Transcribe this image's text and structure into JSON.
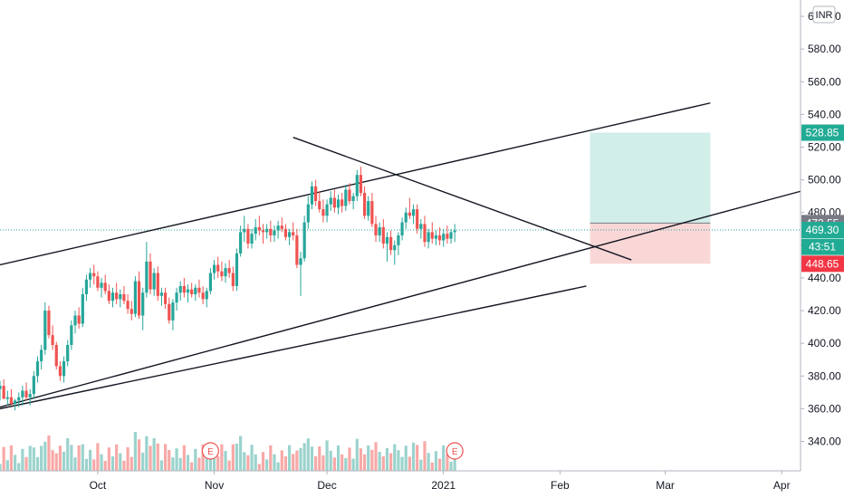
{
  "chart_data": {
    "type": "candlestick",
    "currency_badge": "INR",
    "y_ticks": [
      "340.00",
      "360.00",
      "380.00",
      "400.00",
      "420.00",
      "440.00",
      "460.00",
      "480.00",
      "500.00",
      "520.00",
      "540.00",
      "560.00",
      "580.00",
      "600.00"
    ],
    "x_ticks": [
      {
        "label": "Oct",
        "pos": "2020-10"
      },
      {
        "label": "Nov",
        "pos": "2020-11"
      },
      {
        "label": "Dec",
        "pos": "2020-12"
      },
      {
        "label": "2021",
        "pos": "2021-01"
      },
      {
        "label": "Feb",
        "pos": "2021-02"
      },
      {
        "label": "Mar",
        "pos": "2021-03"
      },
      {
        "label": "Apr",
        "pos": "2021-04"
      }
    ],
    "ylim": [
      322,
      610
    ],
    "x_range": [
      "2020-09-05",
      "2021-04-06"
    ],
    "candles": [
      [
        "2020-09-05",
        372,
        377,
        365,
        374
      ],
      [
        "2020-09-06",
        374,
        378,
        366,
        366
      ],
      [
        "2020-09-07",
        366,
        371,
        362,
        367
      ],
      [
        "2020-09-08",
        367,
        372,
        362,
        363
      ],
      [
        "2020-09-09",
        363,
        366,
        359,
        365
      ],
      [
        "2020-09-10",
        365,
        370,
        361,
        367
      ],
      [
        "2020-09-11",
        367,
        374,
        362,
        371
      ],
      [
        "2020-09-12",
        371,
        376,
        365,
        367
      ],
      [
        "2020-09-13",
        367,
        372,
        362,
        369
      ],
      [
        "2020-09-14",
        369,
        383,
        366,
        380
      ],
      [
        "2020-09-15",
        380,
        392,
        376,
        389
      ],
      [
        "2020-09-16",
        389,
        399,
        384,
        396
      ],
      [
        "2020-09-17",
        396,
        425,
        393,
        420
      ],
      [
        "2020-09-18",
        420,
        423,
        403,
        405
      ],
      [
        "2020-09-19",
        405,
        411,
        396,
        399
      ],
      [
        "2020-09-20",
        399,
        401,
        384,
        386
      ],
      [
        "2020-09-21",
        386,
        389,
        377,
        380
      ],
      [
        "2020-09-22",
        380,
        392,
        376,
        389
      ],
      [
        "2020-09-23",
        389,
        402,
        386,
        399
      ],
      [
        "2020-09-24",
        399,
        414,
        396,
        411
      ],
      [
        "2020-09-25",
        411,
        420,
        406,
        417
      ],
      [
        "2020-09-26",
        417,
        422,
        409,
        412
      ],
      [
        "2020-09-27",
        412,
        434,
        410,
        430
      ],
      [
        "2020-09-28",
        430,
        442,
        426,
        439
      ],
      [
        "2020-09-29",
        439,
        446,
        434,
        443
      ],
      [
        "2020-09-30",
        443,
        448,
        436,
        441
      ],
      [
        "2020-10-01",
        441,
        444,
        432,
        434
      ],
      [
        "2020-10-02",
        434,
        440,
        428,
        437
      ],
      [
        "2020-10-03",
        437,
        442,
        430,
        432
      ],
      [
        "2020-10-04",
        432,
        436,
        424,
        426
      ],
      [
        "2020-10-05",
        426,
        434,
        422,
        431
      ],
      [
        "2020-10-06",
        431,
        437,
        424,
        427
      ],
      [
        "2020-10-07",
        427,
        433,
        422,
        430
      ],
      [
        "2020-10-08",
        430,
        435,
        424,
        426
      ],
      [
        "2020-10-09",
        426,
        430,
        418,
        421
      ],
      [
        "2020-10-10",
        421,
        426,
        414,
        418
      ],
      [
        "2020-10-11",
        418,
        441,
        416,
        438
      ],
      [
        "2020-10-12",
        438,
        444,
        415,
        417
      ],
      [
        "2020-10-13",
        417,
        434,
        408,
        431
      ],
      [
        "2020-10-14",
        431,
        462,
        428,
        450
      ],
      [
        "2020-10-15",
        450,
        455,
        430,
        433
      ],
      [
        "2020-10-16",
        433,
        446,
        429,
        443
      ],
      [
        "2020-10-17",
        443,
        447,
        426,
        429
      ],
      [
        "2020-10-18",
        429,
        434,
        423,
        431
      ],
      [
        "2020-10-19",
        431,
        434,
        421,
        424
      ],
      [
        "2020-10-20",
        424,
        428,
        412,
        414
      ],
      [
        "2020-10-21",
        414,
        427,
        408,
        425
      ],
      [
        "2020-10-22",
        425,
        434,
        420,
        431
      ],
      [
        "2020-10-23",
        431,
        438,
        426,
        435
      ],
      [
        "2020-10-24",
        435,
        440,
        428,
        431
      ],
      [
        "2020-10-25",
        431,
        436,
        425,
        433
      ],
      [
        "2020-10-26",
        433,
        437,
        428,
        430
      ],
      [
        "2020-10-27",
        430,
        436,
        426,
        434
      ],
      [
        "2020-10-28",
        434,
        439,
        428,
        431
      ],
      [
        "2020-10-29",
        431,
        435,
        424,
        427
      ],
      [
        "2020-10-30",
        427,
        434,
        422,
        432
      ],
      [
        "2020-10-31",
        432,
        446,
        430,
        443
      ],
      [
        "2020-11-01",
        443,
        451,
        439,
        448
      ],
      [
        "2020-11-02",
        448,
        453,
        440,
        444
      ],
      [
        "2020-11-03",
        444,
        450,
        438,
        441
      ],
      [
        "2020-11-04",
        441,
        449,
        437,
        446
      ],
      [
        "2020-11-05",
        446,
        451,
        440,
        443
      ],
      [
        "2020-11-06",
        443,
        447,
        432,
        435
      ],
      [
        "2020-11-07",
        435,
        458,
        432,
        455
      ],
      [
        "2020-11-08",
        455,
        472,
        453,
        468
      ],
      [
        "2020-11-09",
        468,
        478,
        462,
        470
      ],
      [
        "2020-11-10",
        470,
        473,
        458,
        461
      ],
      [
        "2020-11-11",
        461,
        470,
        458,
        467
      ],
      [
        "2020-11-12",
        467,
        476,
        463,
        471
      ],
      [
        "2020-11-13",
        471,
        478,
        466,
        469
      ],
      [
        "2020-11-14",
        469,
        473,
        461,
        468
      ],
      [
        "2020-11-15",
        468,
        473,
        464,
        470
      ],
      [
        "2020-11-16",
        470,
        475,
        462,
        466
      ],
      [
        "2020-11-17",
        466,
        472,
        462,
        469
      ],
      [
        "2020-11-18",
        469,
        475,
        464,
        472
      ],
      [
        "2020-11-19",
        472,
        477,
        468,
        470
      ],
      [
        "2020-11-20",
        470,
        473,
        463,
        465
      ],
      [
        "2020-11-21",
        465,
        470,
        460,
        468
      ],
      [
        "2020-11-22",
        468,
        474,
        463,
        466
      ],
      [
        "2020-11-23",
        466,
        470,
        446,
        448
      ],
      [
        "2020-11-24",
        448,
        456,
        429,
        452
      ],
      [
        "2020-11-25",
        452,
        478,
        450,
        474
      ],
      [
        "2020-11-26",
        474,
        490,
        470,
        485
      ],
      [
        "2020-11-27",
        485,
        499,
        482,
        496
      ],
      [
        "2020-11-28",
        496,
        500,
        484,
        487
      ],
      [
        "2020-11-29",
        487,
        493,
        480,
        482
      ],
      [
        "2020-11-30",
        482,
        488,
        474,
        478
      ],
      [
        "2020-12-01",
        478,
        488,
        474,
        485
      ],
      [
        "2020-12-02",
        485,
        493,
        481,
        489
      ],
      [
        "2020-12-03",
        489,
        494,
        480,
        483
      ],
      [
        "2020-12-04",
        483,
        491,
        479,
        488
      ],
      [
        "2020-12-05",
        488,
        492,
        480,
        484
      ],
      [
        "2020-12-06",
        484,
        497,
        481,
        494
      ],
      [
        "2020-12-07",
        494,
        498,
        485,
        487
      ],
      [
        "2020-12-08",
        487,
        492,
        482,
        490
      ],
      [
        "2020-12-09",
        490,
        506,
        487,
        503
      ],
      [
        "2020-12-10",
        503,
        508,
        490,
        492
      ],
      [
        "2020-12-11",
        492,
        496,
        476,
        478
      ],
      [
        "2020-12-12",
        478,
        490,
        475,
        487
      ],
      [
        "2020-12-13",
        487,
        492,
        471,
        473
      ],
      [
        "2020-12-14",
        473,
        478,
        462,
        466
      ],
      [
        "2020-12-15",
        466,
        474,
        462,
        471
      ],
      [
        "2020-12-16",
        471,
        476,
        458,
        461
      ],
      [
        "2020-12-17",
        461,
        468,
        450,
        465
      ],
      [
        "2020-12-18",
        465,
        469,
        454,
        457
      ],
      [
        "2020-12-19",
        457,
        463,
        448,
        460
      ],
      [
        "2020-12-20",
        460,
        468,
        454,
        466
      ],
      [
        "2020-12-21",
        466,
        477,
        463,
        474
      ],
      [
        "2020-12-22",
        474,
        483,
        470,
        480
      ],
      [
        "2020-12-23",
        480,
        489,
        476,
        478
      ],
      [
        "2020-12-24",
        478,
        485,
        473,
        482
      ],
      [
        "2020-12-25",
        482,
        485,
        467,
        470
      ],
      [
        "2020-12-26",
        470,
        476,
        464,
        473
      ],
      [
        "2020-12-27",
        473,
        478,
        459,
        462
      ],
      [
        "2020-12-28",
        462,
        470,
        458,
        468
      ],
      [
        "2020-12-29",
        468,
        474,
        461,
        464
      ],
      [
        "2020-12-30",
        464,
        469,
        460,
        466
      ],
      [
        "2020-12-31",
        466,
        471,
        460,
        463
      ],
      [
        "2021-01-01",
        463,
        470,
        459,
        467
      ],
      [
        "2021-01-02",
        467,
        472,
        461,
        464
      ],
      [
        "2021-01-03",
        464,
        470,
        461,
        468
      ],
      [
        "2021-01-04",
        468,
        473,
        462,
        469
      ]
    ],
    "trendlines": [
      {
        "from": [
          "2020-09-05",
          448
        ],
        "to": [
          "2021-03-13",
          547
        ]
      },
      {
        "from": [
          "2020-09-05",
          361
        ],
        "to": [
          "2021-04-06",
          493
        ]
      },
      {
        "from": [
          "2020-09-05",
          360
        ],
        "to": [
          "2021-02-08",
          435
        ]
      },
      {
        "from": [
          "2020-11-22",
          526
        ],
        "to": [
          "2021-02-20",
          451
        ]
      }
    ],
    "position": {
      "start": "2021-02-09",
      "end": "2021-03-13",
      "target": 528.85,
      "entry": 473.55,
      "stop": 448.65
    },
    "last_price_line": 469.3,
    "price_labels": [
      {
        "value": 528.85,
        "text": "528.85",
        "bg": "#22ab94"
      },
      {
        "value": 473.55,
        "text": "473.55",
        "bg": "#787b86"
      },
      {
        "value": 469.3,
        "text": "469.30",
        "bg": "#22ab94"
      },
      {
        "value": 459.0,
        "text": "43:51",
        "bg": "#22ab94"
      },
      {
        "value": 448.65,
        "text": "448.65",
        "bg": "#f23645"
      }
    ],
    "earnings": [
      {
        "date": "2020-10-31",
        "label": "E"
      },
      {
        "date": "2021-01-04",
        "label": "E"
      }
    ],
    "colors": {
      "up": "#26a69a",
      "down": "#ef5350",
      "vol_up": "#9bd3cd",
      "vol_down": "#f7a9a7",
      "target_zone": "#d2eee9",
      "stop_zone": "#fad7d7",
      "dotted": "#26a69a"
    }
  }
}
